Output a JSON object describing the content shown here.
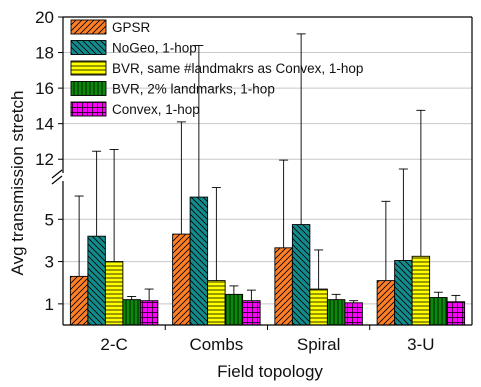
{
  "chart_data": {
    "type": "bar",
    "xlabel": "Field topology",
    "ylabel": "Avg transmission stretch",
    "categories": [
      "2-C",
      "Combs",
      "Spiral",
      "3-U"
    ],
    "axis_break": {
      "lower_range": [
        0,
        7
      ],
      "upper_range": [
        11,
        20
      ]
    },
    "yticks": [
      1,
      3,
      5,
      12,
      14,
      16,
      18,
      20
    ],
    "grid": true,
    "legend_position": "top-left",
    "series": [
      {
        "name": "GPSR",
        "color": "#ff7f27",
        "pattern": "diagonal-hatch",
        "values": [
          2.3,
          4.3,
          3.65,
          2.1
        ],
        "err_upper": [
          6.1,
          14.1,
          11.95,
          5.85
        ]
      },
      {
        "name": "NoGeo, 1-hop",
        "color": "#128c8c",
        "pattern": "reverse-diagonal-hatch",
        "values": [
          4.2,
          6.05,
          4.75,
          3.05
        ],
        "err_upper": [
          12.45,
          18.4,
          19.05,
          11.45
        ]
      },
      {
        "name": "BVR, same #landmakrs as Convex, 1-hop",
        "color": "#ffff00",
        "pattern": "horizontal-lines",
        "values": [
          3.0,
          2.1,
          1.7,
          3.25
        ],
        "err_upper": [
          12.55,
          6.5,
          3.55,
          14.75
        ]
      },
      {
        "name": "BVR, 2% landmarks, 1-hop",
        "color": "#0a8a0a",
        "pattern": "vertical-lines",
        "values": [
          1.2,
          1.45,
          1.2,
          1.3
        ],
        "err_upper": [
          1.35,
          1.85,
          1.45,
          1.55
        ]
      },
      {
        "name": "Convex, 1-hop",
        "color": "#ff00ff",
        "pattern": "grid",
        "values": [
          1.15,
          1.15,
          1.05,
          1.1
        ],
        "err_upper": [
          1.7,
          1.65,
          1.15,
          1.4
        ]
      }
    ]
  }
}
